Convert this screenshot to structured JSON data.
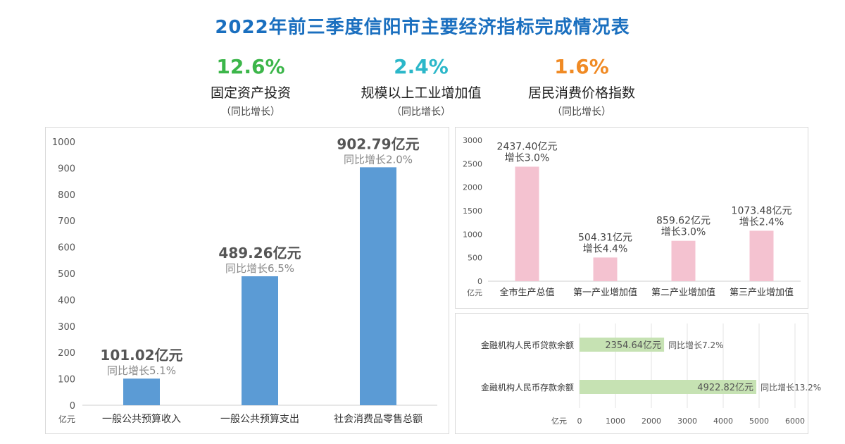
{
  "title": "2022年前三季度信阳市主要经济指标完成情况表",
  "kpis": [
    {
      "value": "12.6%",
      "label": "固定资产投资",
      "sub": "（同比增长）",
      "color": "#3cb64a"
    },
    {
      "value": "2.4%",
      "label": "规模以上工业增加值",
      "sub": "（同比增长）",
      "color": "#2bb7c9"
    },
    {
      "value": "1.6%",
      "label": "居民消费价格指数",
      "sub": "（同比增长）",
      "color": "#f08a24"
    }
  ],
  "chart_data": [
    {
      "type": "bar",
      "unit_label": "亿元",
      "categories": [
        "一般公共预算收入",
        "一般公共预算支出",
        "社会消费品零售总额"
      ],
      "values": [
        101.02,
        489.26,
        902.79
      ],
      "value_labels": [
        "101.02亿元",
        "489.26亿元",
        "902.79亿元"
      ],
      "growth_labels": [
        "同比增长5.1%",
        "同比增长6.5%",
        "同比增长2.0%"
      ],
      "ylim": [
        0,
        1000
      ],
      "yticks": [
        "0",
        "100",
        "200",
        "300",
        "400",
        "500",
        "600",
        "700",
        "800",
        "900",
        "1000"
      ],
      "color": "#5b9bd5",
      "grid": false
    },
    {
      "type": "bar",
      "unit_label": "亿元",
      "categories": [
        "全市生产总值",
        "第一产业增加值",
        "第二产业增加值",
        "第三产业增加值"
      ],
      "values": [
        2437.4,
        504.31,
        859.62,
        1073.48
      ],
      "value_labels": [
        "2437.40亿元",
        "504.31亿元",
        "859.62亿元",
        "1073.48亿元"
      ],
      "growth_labels": [
        "增长3.0%",
        "增长4.4%",
        "增长3.0%",
        "增长2.4%"
      ],
      "ylim": [
        0,
        3000
      ],
      "yticks": [
        "0",
        "500",
        "1000",
        "1500",
        "2000",
        "2500",
        "3000"
      ],
      "color": "#f4c2d0",
      "grid": false
    },
    {
      "type": "bar",
      "orientation": "horizontal",
      "unit_label": "亿元",
      "categories": [
        "金融机构人民币贷款余额",
        "金融机构人民币存款余额"
      ],
      "values": [
        2354.64,
        4922.82
      ],
      "value_labels": [
        "2354.64亿元",
        "4922.82亿元"
      ],
      "growth_labels": [
        "同比增长7.2%",
        "同比增长13.2%"
      ],
      "xlim": [
        0,
        6000
      ],
      "xticks": [
        "0",
        "1000",
        "2000",
        "3000",
        "4000",
        "5000",
        "6000"
      ],
      "color": "#c6e2b3",
      "grid": true
    }
  ]
}
